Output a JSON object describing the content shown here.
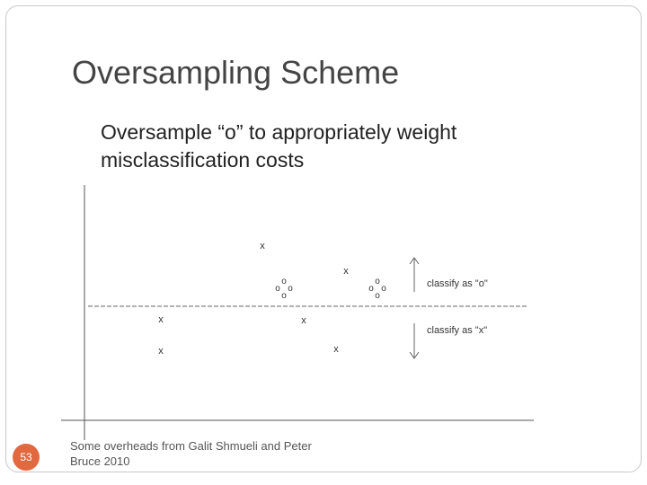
{
  "slide": {
    "title": "Oversampling Scheme",
    "body_line1": "Oversample “o” to appropriately weight",
    "body_line2": "misclassification costs",
    "slide_number": "53",
    "footer_line1": "Some overheads from Galit Shmueli and Peter",
    "footer_line2": "Bruce 2010"
  },
  "diagram": {
    "x_marker": "x",
    "o_marker": "o",
    "label_top": "classify as \"o\"",
    "label_bottom": "classify as \"x\""
  }
}
